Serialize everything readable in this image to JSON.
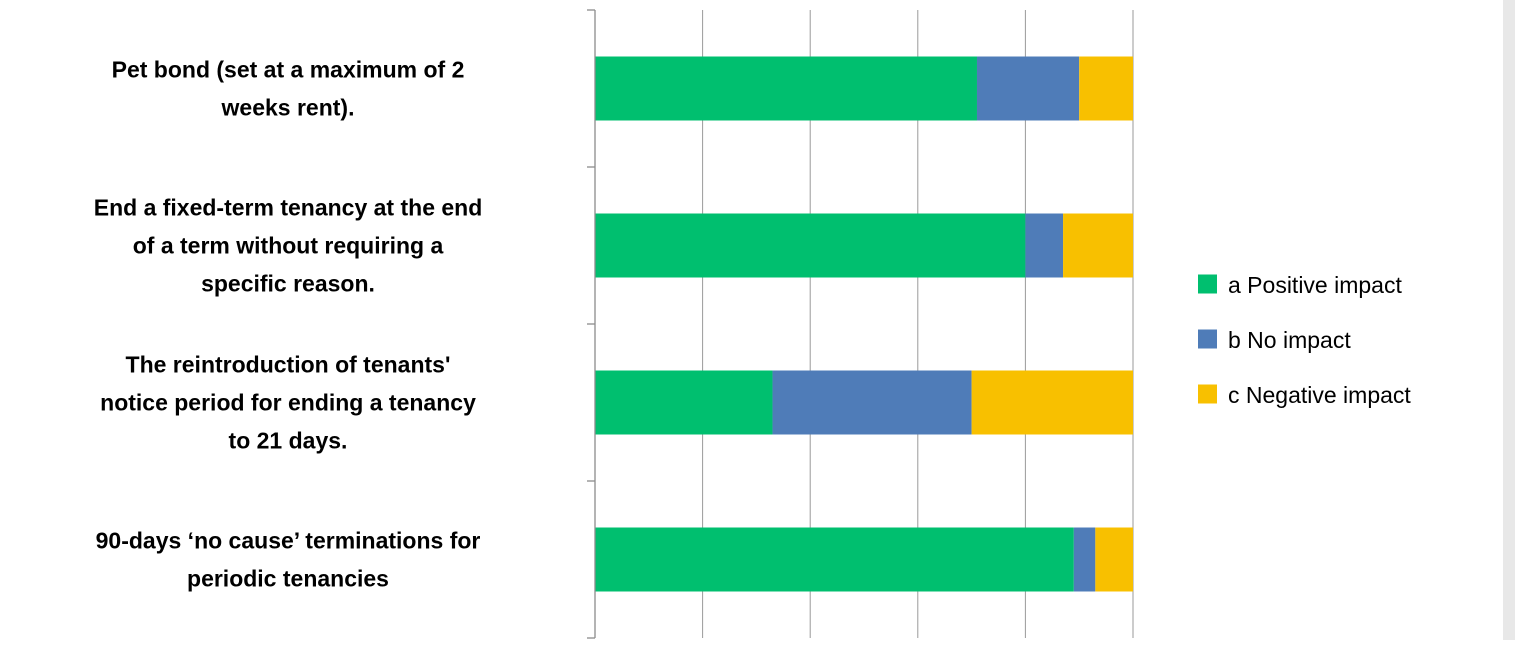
{
  "chart_data": {
    "type": "bar",
    "orientation": "horizontal",
    "stacked": "percent",
    "categories": [
      [
        "Pet bond (set at a maximum of 2",
        "weeks rent)."
      ],
      [
        "End a fixed-term tenancy at the end",
        "of a term without requiring a",
        "specific reason."
      ],
      [
        "The reintroduction of tenants'",
        "notice period for ending a tenancy",
        "to 21 days."
      ],
      [
        "90-days ‘no cause’ terminations for",
        "periodic tenancies"
      ]
    ],
    "series": [
      {
        "name": "a Positive impact",
        "color": "#00bf6f",
        "values": [
          71,
          80,
          33,
          89
        ]
      },
      {
        "name": "b No impact",
        "color": "#4f7cb8",
        "values": [
          19,
          7,
          37,
          4
        ]
      },
      {
        "name": "c Negative impact",
        "color": "#f8c000",
        "values": [
          10,
          13,
          30,
          7
        ]
      }
    ],
    "xlim": [
      0,
      100
    ],
    "gridlines": true,
    "legend_position": "right",
    "tick_labels_visible": false
  }
}
